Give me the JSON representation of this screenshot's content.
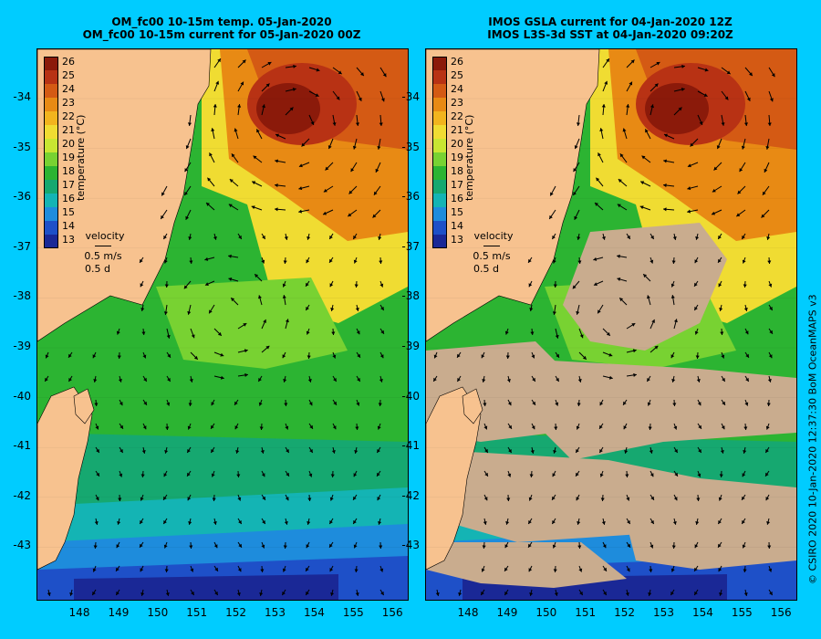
{
  "left": {
    "title_line1": "OM_fc00 10-15m temp. 05-Jan-2020",
    "title_line2": "OM_fc00 10-15m current for 05-Jan-2020 00Z"
  },
  "right": {
    "title_line1": "IMOS GSLA current for 04-Jan-2020 12Z",
    "title_line2": "IMOS L3S-3d SST at 04-Jan-2020 09:20Z"
  },
  "y_ticks": [
    "-34",
    "-35",
    "-36",
    "-37",
    "-38",
    "-39",
    "-40",
    "-41",
    "-42",
    "-43"
  ],
  "x_ticks": [
    "148",
    "149",
    "150",
    "151",
    "152",
    "153",
    "154",
    "155",
    "156"
  ],
  "colorbar": {
    "title": "temperature (°C)",
    "labels": [
      "26",
      "25",
      "24",
      "23",
      "22",
      "21",
      "20",
      "19",
      "18",
      "17",
      "16",
      "15",
      "14",
      "13"
    ],
    "colors": [
      "#8b1a0a",
      "#b83214",
      "#d45a14",
      "#e88a14",
      "#f2b41e",
      "#f0dc32",
      "#c8e632",
      "#78d232",
      "#2cb432",
      "#16a870",
      "#14b4b4",
      "#1e8cdc",
      "#1e50c8",
      "#1a2896"
    ]
  },
  "velocity": {
    "label": "velocity",
    "speed": "0.5 m/s",
    "time": "0.5 d"
  },
  "credit": "© CSIRO 2020   10-Jan-2020 12:37:30 BoM OceanMAPS v3"
}
